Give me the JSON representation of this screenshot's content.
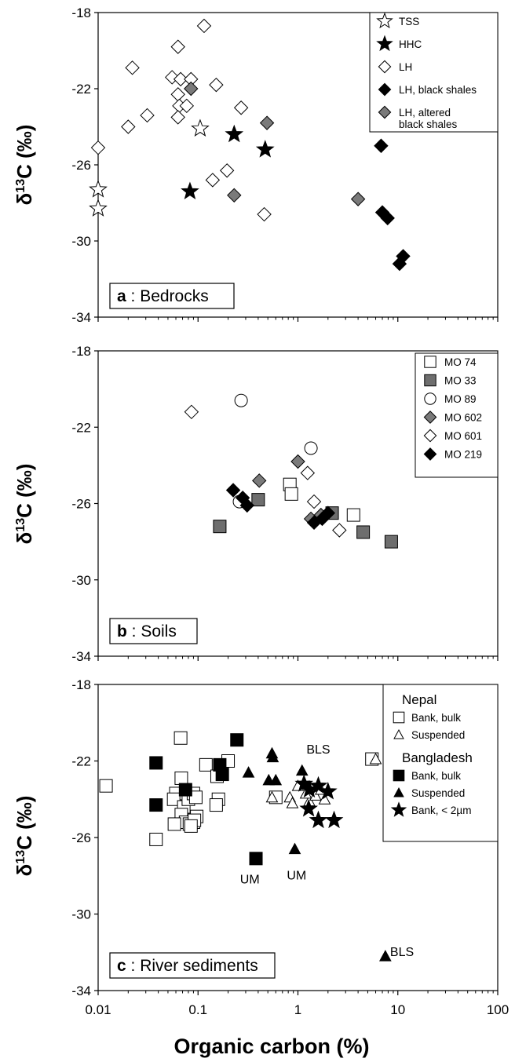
{
  "figure": {
    "xlabel": "Organic carbon (%)",
    "x_tick_labels": [
      "0.01",
      "0.1",
      "1",
      "10",
      "100"
    ],
    "x_ticks": [
      0.01,
      0.1,
      1,
      10,
      100
    ]
  },
  "styles": {
    "open_star": {
      "shape": "star",
      "fill": "#ffffff"
    },
    "filled_star": {
      "shape": "star",
      "fill": "#000000"
    },
    "open_diamond": {
      "shape": "diamond",
      "fill": "#ffffff"
    },
    "black_diamond": {
      "shape": "diamond",
      "fill": "#000000"
    },
    "gray_diamond": {
      "shape": "diamond",
      "fill": "#7a7a7a"
    },
    "open_square": {
      "shape": "square",
      "fill": "#ffffff"
    },
    "gray_square": {
      "shape": "square",
      "fill": "#6e6e6e"
    },
    "black_square": {
      "shape": "square",
      "fill": "#000000"
    },
    "open_circle": {
      "shape": "circle",
      "fill": "#ffffff"
    },
    "open_triangle": {
      "shape": "triangle",
      "fill": "#ffffff"
    },
    "black_triangle": {
      "shape": "triangle",
      "fill": "#000000"
    }
  },
  "chart_data": [
    {
      "type": "scatter",
      "title_bold": "a",
      "title_rest": " : Bedrocks",
      "ylabel": "δ13C (‰)",
      "xscale": "log",
      "xlim": [
        0.01,
        100
      ],
      "ylim": [
        -34,
        -18
      ],
      "y_ticks": [
        -18,
        -22,
        -26,
        -30,
        -34
      ],
      "y_tick_labels": [
        "-18",
        "-22",
        "-26",
        "-30",
        "-34"
      ],
      "legend": [
        {
          "label": "TSS",
          "style": "open_star"
        },
        {
          "label": "HHC",
          "style": "filled_star"
        },
        {
          "label": "LH",
          "style": "open_diamond"
        },
        {
          "label": "LH, black shales",
          "style": "black_diamond"
        },
        {
          "label": "LH, altered",
          "label2": "black shales",
          "style": "gray_diamond"
        }
      ],
      "series": [
        {
          "name": "TSS",
          "style": "open_star",
          "points": [
            [
              0.01,
              -27.3
            ],
            [
              0.01,
              -28.3
            ],
            [
              0.105,
              -24.1
            ]
          ]
        },
        {
          "name": "HHC",
          "style": "filled_star",
          "points": [
            [
              0.23,
              -24.4
            ],
            [
              0.47,
              -25.2
            ],
            [
              0.083,
              -27.4
            ]
          ]
        },
        {
          "name": "LH",
          "style": "open_diamond",
          "points": [
            [
              0.115,
              -18.7
            ],
            [
              0.063,
              -19.8
            ],
            [
              0.022,
              -20.9
            ],
            [
              0.055,
              -21.4
            ],
            [
              0.067,
              -21.5
            ],
            [
              0.085,
              -21.5
            ],
            [
              0.063,
              -22.3
            ],
            [
              0.152,
              -21.8
            ],
            [
              0.065,
              -22.9
            ],
            [
              0.02,
              -24.0
            ],
            [
              0.031,
              -23.4
            ],
            [
              0.063,
              -23.5
            ],
            [
              0.077,
              -22.9
            ],
            [
              0.27,
              -23.0
            ],
            [
              0.01,
              -25.1
            ],
            [
              0.195,
              -26.3
            ],
            [
              0.14,
              -26.8
            ],
            [
              0.46,
              -28.6
            ]
          ]
        },
        {
          "name": "LH, black shales",
          "style": "black_diamond",
          "points": [
            [
              6.8,
              -25.0
            ],
            [
              7.0,
              -28.5
            ],
            [
              7.9,
              -28.8
            ],
            [
              11.3,
              -30.8
            ],
            [
              10.4,
              -31.2
            ]
          ]
        },
        {
          "name": "LH, altered black shales",
          "style": "gray_diamond",
          "points": [
            [
              0.085,
              -22.0
            ],
            [
              0.49,
              -23.8
            ],
            [
              0.23,
              -27.6
            ],
            [
              4.0,
              -27.8
            ]
          ]
        }
      ],
      "annotations": []
    },
    {
      "type": "scatter",
      "title_bold": "b",
      "title_rest": " : Soils",
      "ylabel": "δ13C (‰)",
      "xscale": "log",
      "xlim": [
        0.01,
        100
      ],
      "ylim": [
        -34,
        -18
      ],
      "y_ticks": [
        -18,
        -22,
        -26,
        -30,
        -34
      ],
      "y_tick_labels": [
        "-18",
        "-22",
        "-26",
        "-30",
        "-34"
      ],
      "legend": [
        {
          "label": "MO 74",
          "style": "open_square"
        },
        {
          "label": "MO 33",
          "style": "gray_square"
        },
        {
          "label": "MO 89",
          "style": "open_circle"
        },
        {
          "label": "MO 602",
          "style": "gray_diamond"
        },
        {
          "label": "MO 601",
          "style": "open_diamond"
        },
        {
          "label": "MO 219",
          "style": "black_diamond"
        }
      ],
      "series": [
        {
          "name": "MO 74",
          "style": "open_square",
          "points": [
            [
              0.83,
              -25.0
            ],
            [
              0.86,
              -25.5
            ],
            [
              3.6,
              -26.6
            ]
          ]
        },
        {
          "name": "MO 33",
          "style": "gray_square",
          "points": [
            [
              0.165,
              -27.2
            ],
            [
              0.4,
              -25.8
            ],
            [
              2.2,
              -26.5
            ],
            [
              4.5,
              -27.5
            ],
            [
              8.6,
              -28.0
            ]
          ]
        },
        {
          "name": "MO 89",
          "style": "open_circle",
          "points": [
            [
              0.27,
              -20.6
            ],
            [
              1.35,
              -23.1
            ],
            [
              0.26,
              -25.9
            ]
          ]
        },
        {
          "name": "MO 602",
          "style": "gray_diamond",
          "points": [
            [
              1.0,
              -23.8
            ],
            [
              0.41,
              -24.8
            ],
            [
              1.35,
              -26.8
            ],
            [
              1.7,
              -26.6
            ]
          ]
        },
        {
          "name": "MO 601",
          "style": "open_diamond",
          "points": [
            [
              0.086,
              -21.2
            ],
            [
              1.25,
              -24.4
            ],
            [
              1.45,
              -25.9
            ],
            [
              2.6,
              -27.4
            ]
          ]
        },
        {
          "name": "MO 219",
          "style": "black_diamond",
          "points": [
            [
              0.225,
              -25.3
            ],
            [
              0.28,
              -25.7
            ],
            [
              0.31,
              -26.1
            ],
            [
              1.45,
              -27.0
            ],
            [
              1.75,
              -26.8
            ],
            [
              2.0,
              -26.5
            ]
          ]
        }
      ],
      "annotations": []
    },
    {
      "type": "scatter",
      "title_bold": "c",
      "title_rest": " : River sediments",
      "ylabel": "δ13C (‰)",
      "xscale": "log",
      "xlim": [
        0.01,
        100
      ],
      "ylim": [
        -34,
        -18
      ],
      "y_ticks": [
        -18,
        -22,
        -26,
        -30,
        -34
      ],
      "y_tick_labels": [
        "-18",
        "-22",
        "-26",
        "-30",
        "-34"
      ],
      "legend_groups": [
        {
          "heading": "Nepal",
          "items": [
            {
              "label": "Bank, bulk",
              "style": "open_square"
            },
            {
              "label": "Suspended",
              "style": "open_triangle"
            }
          ]
        },
        {
          "heading": "Bangladesh",
          "items": [
            {
              "label": "Bank, bulk",
              "style": "black_square"
            },
            {
              "label": "Suspended",
              "style": "black_triangle"
            },
            {
              "label": "Bank, < 2µm",
              "style": "filled_star"
            }
          ]
        }
      ],
      "series": [
        {
          "name": "Nepal Bank, bulk",
          "style": "open_square",
          "points": [
            [
              0.012,
              -23.3
            ],
            [
              0.067,
              -20.8
            ],
            [
              0.068,
              -22.9
            ],
            [
              0.06,
              -23.7
            ],
            [
              0.057,
              -24.0
            ],
            [
              0.072,
              -24.4
            ],
            [
              0.068,
              -24.8
            ],
            [
              0.08,
              -24.0
            ],
            [
              0.09,
              -23.7
            ],
            [
              0.095,
              -23.9
            ],
            [
              0.097,
              -24.9
            ],
            [
              0.09,
              -25.2
            ],
            [
              0.075,
              -25.2
            ],
            [
              0.058,
              -25.3
            ],
            [
              0.082,
              -25.3
            ],
            [
              0.092,
              -25.1
            ],
            [
              0.085,
              -25.4
            ],
            [
              0.12,
              -22.2
            ],
            [
              0.155,
              -22.8
            ],
            [
              0.16,
              -24.0
            ],
            [
              0.152,
              -24.3
            ],
            [
              0.2,
              -22.0
            ],
            [
              0.6,
              -23.9
            ],
            [
              5.5,
              -21.9
            ],
            [
              0.038,
              -26.1
            ]
          ]
        },
        {
          "name": "Nepal Suspended",
          "style": "open_triangle",
          "points": [
            [
              1.0,
              -23.3
            ],
            [
              0.83,
              -23.9
            ],
            [
              0.88,
              -24.2
            ],
            [
              1.3,
              -24.1
            ],
            [
              1.5,
              -23.8
            ],
            [
              1.85,
              -24.0
            ],
            [
              1.7,
              -23.5
            ],
            [
              1.2,
              -23.7
            ],
            [
              6.0,
              -21.9
            ],
            [
              0.55,
              -23.9
            ]
          ]
        },
        {
          "name": "Bangladesh Bank, bulk",
          "style": "black_square",
          "points": [
            [
              0.038,
              -22.1
            ],
            [
              0.038,
              -24.3
            ],
            [
              0.075,
              -23.5
            ],
            [
              0.165,
              -22.2
            ],
            [
              0.175,
              -22.7
            ],
            [
              0.245,
              -20.9
            ],
            [
              0.38,
              -27.1
            ]
          ]
        },
        {
          "name": "Bangladesh Suspended",
          "style": "black_triangle",
          "points": [
            [
              0.32,
              -22.6
            ],
            [
              0.55,
              -21.6
            ],
            [
              0.56,
              -21.8
            ],
            [
              0.51,
              -23.0
            ],
            [
              0.6,
              -23.0
            ],
            [
              1.1,
              -22.5
            ],
            [
              0.93,
              -26.6
            ],
            [
              7.5,
              -32.2
            ]
          ]
        },
        {
          "name": "Bangladesh Bank, < 2µm",
          "style": "filled_star",
          "points": [
            [
              1.15,
              -23.2
            ],
            [
              1.3,
              -23.5
            ],
            [
              1.6,
              -23.3
            ],
            [
              2.0,
              -23.6
            ],
            [
              1.28,
              -24.5
            ],
            [
              1.6,
              -25.1
            ],
            [
              2.3,
              -25.1
            ]
          ]
        }
      ],
      "annotations": [
        {
          "text": "BLS",
          "x": 1.6,
          "y": -21.6
        },
        {
          "text": "UM",
          "x": 0.33,
          "y": -28.4
        },
        {
          "text": "UM",
          "x": 0.97,
          "y": -28.2
        },
        {
          "text": "BLS",
          "x": 11.0,
          "y": -32.2
        }
      ]
    }
  ]
}
